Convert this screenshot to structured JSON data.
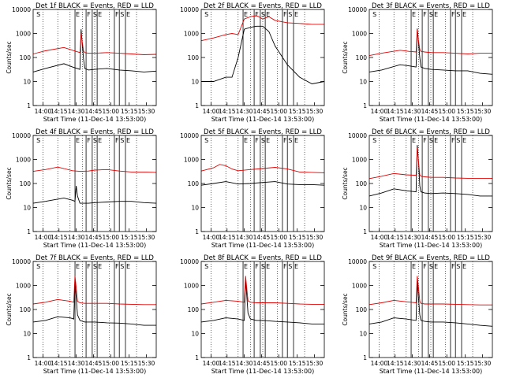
{
  "colors": {
    "events": "#000000",
    "lld": "#e00000",
    "axis": "#000000",
    "grid": "#000000"
  },
  "chart_data": [
    {
      "type": "line",
      "title": "Det 1f BLACK = Events, RED = LLD",
      "xlabel": "Start Time (11-Dec-14 13:53:00)",
      "ylabel": "Counts/sec",
      "yscale": "log",
      "xlim": [
        0,
        100
      ],
      "ylim": [
        1,
        10000
      ],
      "grid": true,
      "x_ticks": [
        "14:00",
        "14:15",
        "14:30",
        "14:45",
        "15:00",
        "15:15",
        "15:30"
      ],
      "y_ticks": [
        "1",
        "10",
        "100",
        "1000",
        "10000"
      ],
      "markers": [
        "S",
        "E",
        "F",
        "S",
        "E",
        "F",
        "S",
        "E"
      ],
      "series": [
        {
          "color": "#000000",
          "x": [
            0,
            10,
            25,
            32,
            38,
            39,
            40,
            41,
            42,
            45,
            50,
            60,
            70,
            80,
            90,
            100
          ],
          "y": [
            25,
            35,
            55,
            40,
            32,
            1500,
            300,
            80,
            35,
            30,
            32,
            35,
            30,
            28,
            25,
            27
          ]
        },
        {
          "color": "#e00000",
          "x": [
            0,
            10,
            25,
            32,
            38,
            39,
            40,
            41,
            42,
            45,
            50,
            60,
            70,
            80,
            90,
            100
          ],
          "y": [
            140,
            190,
            260,
            200,
            160,
            1000,
            400,
            180,
            160,
            150,
            150,
            160,
            150,
            140,
            130,
            135
          ]
        }
      ]
    },
    {
      "type": "line",
      "title": "Det 2f BLACK = Events, RED = LLD",
      "xlabel": "Start Time (11-Dec-14 13:53:00)",
      "ylabel": "",
      "yscale": "log",
      "xlim": [
        0,
        100
      ],
      "ylim": [
        1,
        10000
      ],
      "grid": true,
      "x_ticks": [
        "14:00",
        "14:15",
        "14:30",
        "14:45",
        "15:00",
        "15:15",
        "15:30"
      ],
      "y_ticks": [
        "1",
        "10",
        "100",
        "1000",
        "10000"
      ],
      "markers": [
        "S",
        "E",
        "F",
        "S",
        "E",
        "F",
        "S",
        "E"
      ],
      "series": [
        {
          "color": "#000000",
          "x": [
            0,
            10,
            20,
            25,
            30,
            35,
            40,
            45,
            50,
            55,
            60,
            70,
            80,
            90,
            100
          ],
          "y": [
            10,
            10,
            15,
            15,
            100,
            1500,
            1800,
            2000,
            2000,
            1200,
            300,
            50,
            15,
            8,
            10
          ]
        },
        {
          "color": "#e00000",
          "x": [
            0,
            10,
            20,
            25,
            30,
            35,
            40,
            45,
            50,
            55,
            60,
            70,
            80,
            90,
            100
          ],
          "y": [
            500,
            650,
            900,
            1000,
            900,
            4000,
            5000,
            5500,
            4000,
            5000,
            3500,
            2800,
            2600,
            2400,
            2400
          ]
        }
      ]
    },
    {
      "type": "line",
      "title": "Det 3f BLACK = Events, RED = LLD",
      "xlabel": "Start Time (11-Dec-14 13:53:00)",
      "ylabel": "Counts/sec",
      "yscale": "log",
      "xlim": [
        0,
        100
      ],
      "ylim": [
        1,
        10000
      ],
      "grid": true,
      "x_ticks": [
        "14:00",
        "14:15",
        "14:30",
        "14:45",
        "15:00",
        "15:15",
        "15:30"
      ],
      "y_ticks": [
        "1",
        "10",
        "100",
        "1000",
        "10000"
      ],
      "markers": [
        "S",
        "E",
        "F",
        "S",
        "E",
        "F",
        "S",
        "E"
      ],
      "series": [
        {
          "color": "#000000",
          "x": [
            0,
            10,
            25,
            32,
            38,
            39,
            40,
            41,
            42,
            45,
            50,
            60,
            70,
            80,
            90,
            100
          ],
          "y": [
            25,
            30,
            50,
            45,
            40,
            1600,
            400,
            100,
            40,
            35,
            32,
            30,
            28,
            28,
            22,
            20
          ]
        },
        {
          "color": "#e00000",
          "x": [
            0,
            10,
            25,
            32,
            38,
            39,
            40,
            41,
            42,
            45,
            50,
            60,
            70,
            80,
            90,
            100
          ],
          "y": [
            120,
            150,
            200,
            180,
            170,
            1500,
            500,
            220,
            180,
            170,
            160,
            160,
            150,
            140,
            150,
            150
          ]
        }
      ]
    },
    {
      "type": "line",
      "title": "Det 4f BLACK = Events, RED = LLD",
      "xlabel": "Start Time (11-Dec-14 13:53:00)",
      "ylabel": "Counts/sec",
      "yscale": "log",
      "xlim": [
        0,
        100
      ],
      "ylim": [
        1,
        10000
      ],
      "grid": true,
      "x_ticks": [
        "14:00",
        "14:15",
        "14:30",
        "14:45",
        "15:00",
        "15:15",
        "15:30"
      ],
      "y_ticks": [
        "1",
        "10",
        "100",
        "1000",
        "10000"
      ],
      "markers": [
        "S",
        "E",
        "F",
        "S",
        "E",
        "F",
        "S",
        "E"
      ],
      "series": [
        {
          "color": "#000000",
          "x": [
            0,
            10,
            25,
            32,
            34,
            35,
            36,
            38,
            45,
            50,
            60,
            70,
            80,
            90,
            100
          ],
          "y": [
            15,
            18,
            25,
            20,
            18,
            80,
            30,
            15,
            15,
            16,
            17,
            18,
            18,
            16,
            15
          ]
        },
        {
          "color": "#e00000",
          "x": [
            0,
            10,
            20,
            25,
            32,
            38,
            45,
            50,
            60,
            70,
            80,
            90,
            100
          ],
          "y": [
            320,
            380,
            480,
            420,
            340,
            320,
            330,
            360,
            380,
            330,
            300,
            300,
            290
          ]
        }
      ]
    },
    {
      "type": "line",
      "title": "Det 5f BLACK = Events, RED = LLD",
      "xlabel": "Start Time (11-Dec-14 13:53:00)",
      "ylabel": "",
      "yscale": "log",
      "xlim": [
        0,
        100
      ],
      "ylim": [
        1,
        10000
      ],
      "grid": true,
      "x_ticks": [
        "14:00",
        "14:15",
        "14:30",
        "14:45",
        "15:00",
        "15:15",
        "15:30"
      ],
      "y_ticks": [
        "1",
        "10",
        "100",
        "1000",
        "10000"
      ],
      "markers": [
        "S",
        "E",
        "F",
        "S",
        "E",
        "F",
        "S",
        "E"
      ],
      "series": [
        {
          "color": "#000000",
          "x": [
            0,
            10,
            20,
            30,
            40,
            50,
            60,
            70,
            80,
            90,
            100
          ],
          "y": [
            85,
            100,
            120,
            95,
            100,
            110,
            120,
            95,
            90,
            90,
            85
          ]
        },
        {
          "color": "#e00000",
          "x": [
            0,
            10,
            15,
            20,
            25,
            30,
            40,
            50,
            60,
            70,
            80,
            90,
            100
          ],
          "y": [
            330,
            450,
            620,
            550,
            400,
            340,
            380,
            420,
            470,
            400,
            300,
            290,
            280
          ]
        }
      ]
    },
    {
      "type": "line",
      "title": "Det 6f BLACK = Events, RED = LLD",
      "xlabel": "Start Time (11-Dec-14 13:53:00)",
      "ylabel": "Counts/sec",
      "yscale": "log",
      "xlim": [
        0,
        100
      ],
      "ylim": [
        1,
        10000
      ],
      "grid": true,
      "x_ticks": [
        "14:00",
        "14:15",
        "14:30",
        "14:45",
        "15:00",
        "15:15",
        "15:30"
      ],
      "y_ticks": [
        "1",
        "10",
        "100",
        "1000",
        "10000"
      ],
      "markers": [
        "S",
        "E",
        "F",
        "S",
        "E",
        "F",
        "S",
        "E"
      ],
      "series": [
        {
          "color": "#000000",
          "x": [
            0,
            10,
            20,
            30,
            38,
            39,
            40,
            41,
            42,
            45,
            50,
            60,
            70,
            80,
            90,
            100
          ],
          "y": [
            30,
            40,
            60,
            50,
            45,
            4000,
            800,
            80,
            45,
            40,
            38,
            40,
            38,
            35,
            30,
            30
          ]
        },
        {
          "color": "#e00000",
          "x": [
            0,
            10,
            20,
            30,
            38,
            39,
            40,
            41,
            42,
            45,
            50,
            60,
            70,
            80,
            90,
            100
          ],
          "y": [
            160,
            200,
            260,
            230,
            220,
            3000,
            800,
            230,
            200,
            190,
            180,
            180,
            170,
            165,
            165,
            165
          ]
        }
      ]
    },
    {
      "type": "line",
      "title": "Det 7f BLACK = Events, RED = LLD",
      "xlabel": "Start Time (11-Dec-14 13:53:00)",
      "ylabel": "Counts/sec",
      "yscale": "log",
      "xlim": [
        0,
        100
      ],
      "ylim": [
        1,
        10000
      ],
      "grid": true,
      "x_ticks": [
        "14:00",
        "14:15",
        "14:30",
        "14:45",
        "15:00",
        "15:15",
        "15:30"
      ],
      "y_ticks": [
        "1",
        "10",
        "100",
        "1000",
        "10000"
      ],
      "markers": [
        "S",
        "E",
        "F",
        "S",
        "E",
        "F",
        "S",
        "E"
      ],
      "series": [
        {
          "color": "#000000",
          "x": [
            0,
            10,
            20,
            30,
            33,
            34,
            35,
            36,
            38,
            42,
            50,
            60,
            70,
            80,
            90,
            100
          ],
          "y": [
            30,
            35,
            50,
            45,
            40,
            1500,
            300,
            60,
            35,
            30,
            30,
            28,
            27,
            25,
            22,
            22
          ]
        },
        {
          "color": "#e00000",
          "x": [
            0,
            10,
            20,
            30,
            33,
            34,
            35,
            36,
            38,
            42,
            50,
            60,
            70,
            80,
            90,
            100
          ],
          "y": [
            170,
            200,
            260,
            220,
            200,
            2500,
            800,
            220,
            190,
            180,
            180,
            180,
            170,
            165,
            160,
            160
          ]
        }
      ]
    },
    {
      "type": "line",
      "title": "Det 8f BLACK = Events, RED = LLD",
      "xlabel": "Start Time (11-Dec-14 13:53:00)",
      "ylabel": "",
      "yscale": "log",
      "xlim": [
        0,
        100
      ],
      "ylim": [
        1,
        10000
      ],
      "grid": true,
      "x_ticks": [
        "14:00",
        "14:15",
        "14:30",
        "14:45",
        "15:00",
        "15:15",
        "15:30"
      ],
      "y_ticks": [
        "1",
        "10",
        "100",
        "1000",
        "10000"
      ],
      "markers": [
        "S",
        "E",
        "F",
        "S",
        "E",
        "F",
        "S",
        "E"
      ],
      "series": [
        {
          "color": "#000000",
          "x": [
            0,
            10,
            20,
            30,
            35,
            36,
            37,
            38,
            40,
            45,
            50,
            60,
            70,
            80,
            90,
            100
          ],
          "y": [
            30,
            35,
            45,
            40,
            35,
            1800,
            400,
            70,
            40,
            35,
            35,
            32,
            30,
            28,
            25,
            25
          ]
        },
        {
          "color": "#e00000",
          "x": [
            0,
            10,
            20,
            30,
            35,
            36,
            37,
            38,
            40,
            45,
            50,
            60,
            70,
            80,
            90,
            100
          ],
          "y": [
            170,
            200,
            240,
            220,
            200,
            2500,
            800,
            230,
            200,
            190,
            190,
            190,
            180,
            170,
            165,
            165
          ]
        }
      ]
    },
    {
      "type": "line",
      "title": "Det 9f BLACK = Events, RED = LLD",
      "xlabel": "Start Time (11-Dec-14 13:53:00)",
      "ylabel": "Counts/sec",
      "yscale": "log",
      "xlim": [
        0,
        100
      ],
      "ylim": [
        1,
        10000
      ],
      "grid": true,
      "x_ticks": [
        "14:00",
        "14:15",
        "14:30",
        "14:45",
        "15:00",
        "15:15",
        "15:30"
      ],
      "y_ticks": [
        "1",
        "10",
        "100",
        "1000",
        "10000"
      ],
      "markers": [
        "S",
        "E",
        "F",
        "S",
        "E",
        "F",
        "S",
        "E"
      ],
      "series": [
        {
          "color": "#000000",
          "x": [
            0,
            10,
            20,
            30,
            38,
            39,
            40,
            41,
            42,
            45,
            50,
            60,
            70,
            80,
            90,
            100
          ],
          "y": [
            25,
            30,
            45,
            40,
            35,
            1500,
            300,
            60,
            35,
            32,
            30,
            30,
            28,
            25,
            22,
            20
          ]
        },
        {
          "color": "#e00000",
          "x": [
            0,
            10,
            20,
            30,
            38,
            39,
            40,
            41,
            42,
            45,
            50,
            60,
            70,
            80,
            90,
            100
          ],
          "y": [
            160,
            190,
            240,
            210,
            190,
            2500,
            800,
            220,
            180,
            170,
            170,
            170,
            165,
            160,
            155,
            155
          ]
        }
      ]
    }
  ]
}
